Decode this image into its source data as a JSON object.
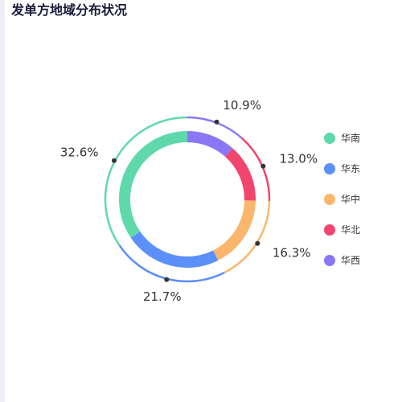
{
  "title": "发单方地域分布状况",
  "chart_data": {
    "type": "pie",
    "variant": "donut",
    "series": [
      {
        "name": "华南",
        "value": 32.6,
        "label": "32.6%",
        "color": "#5fd9ab"
      },
      {
        "name": "华东",
        "value": 21.7,
        "label": "21.7%",
        "color": "#5b8ff9"
      },
      {
        "name": "华中",
        "value": 16.3,
        "label": "16.3%",
        "color": "#fbb66d"
      },
      {
        "name": "华北",
        "value": 13.0,
        "label": "13.0%",
        "color": "#f2456d"
      },
      {
        "name": "华西",
        "value": 10.9,
        "label": "10.9%",
        "color": "#8b77f4"
      }
    ],
    "legend_position": "right"
  }
}
